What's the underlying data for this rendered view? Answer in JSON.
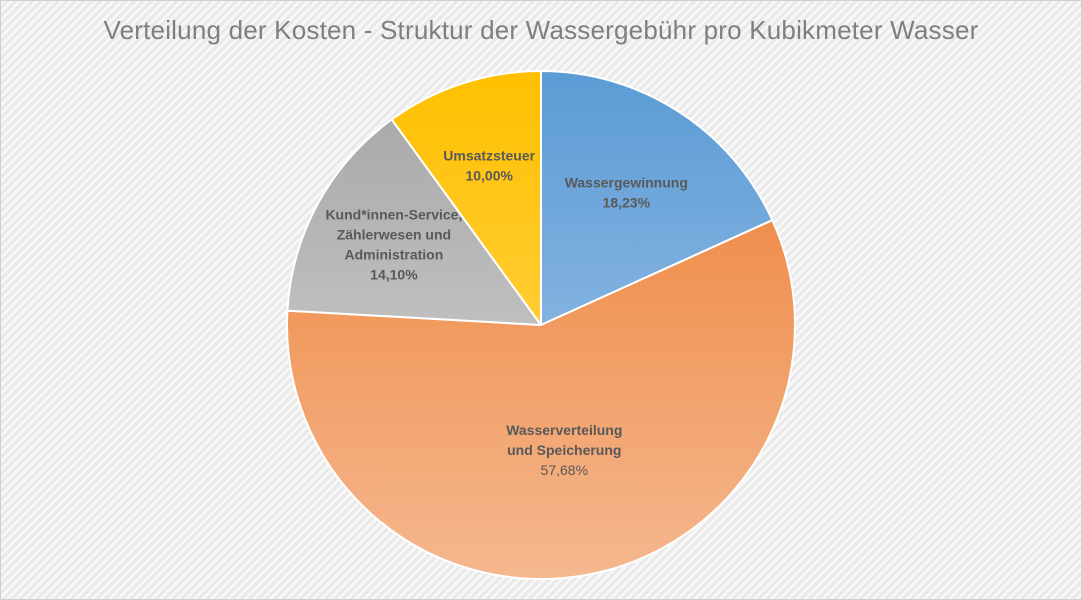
{
  "chart_data": {
    "type": "pie",
    "title": "Verteilung der Kosten - Struktur der Wassergebühr pro Kubikmeter Wasser",
    "unit": "%",
    "start_angle_deg": 0,
    "direction": "clockwise",
    "legend": "none",
    "slices": [
      {
        "label_lines": [
          "Wassergewinnung"
        ],
        "value": 18.23,
        "value_label": "18,23%",
        "color_top": "#5b9bd5",
        "color_bottom": "#a9c9ea"
      },
      {
        "label_lines": [
          "Wasserverteilung",
          "und Speicherung"
        ],
        "value": 57.68,
        "value_label": "57,68%",
        "color_top": "#ed7d31",
        "color_bottom": "#f5b88f"
      },
      {
        "label_lines": [
          "Kund*innen-Service,",
          "Zählerwesen und",
          "Administration"
        ],
        "value": 14.1,
        "value_label": "14,10%",
        "color_top": "#a5a5a5",
        "color_bottom": "#d9d9d9"
      },
      {
        "label_lines": [
          "Umsatzsteuer"
        ],
        "value": 10.0,
        "value_label": "10,00%",
        "color_top": "#ffc000",
        "color_bottom": "#ffd966"
      }
    ]
  }
}
